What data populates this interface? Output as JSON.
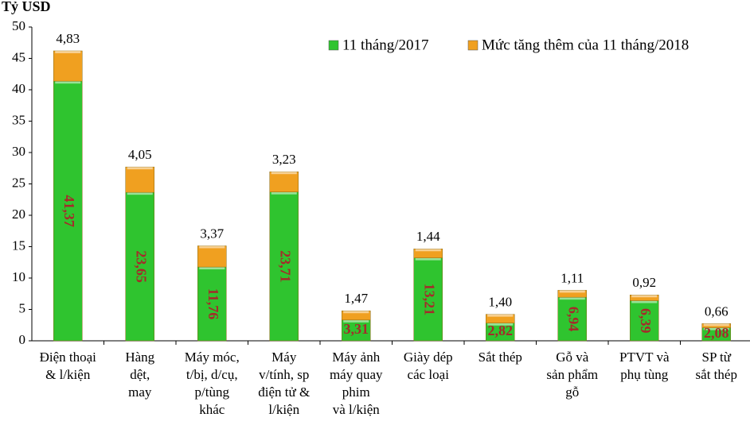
{
  "chart_data": {
    "type": "stacked_bar",
    "y_axis_label": "Tỷ USD",
    "categories": [
      [
        "Điện thoại",
        "& l/kiện"
      ],
      [
        "Hàng",
        "dệt,",
        "may"
      ],
      [
        "Máy móc,",
        "t/bị, d/cụ,",
        "p/tùng",
        "khác"
      ],
      [
        "Máy",
        "v/tính, sp",
        "điện tử &",
        "l/kiện"
      ],
      [
        "Máy ảnh",
        "máy quay",
        "phim",
        "và l/kiện"
      ],
      [
        "Giày dép",
        "các loại"
      ],
      [
        "Sắt thép"
      ],
      [
        "Gỗ và",
        "sản phẩm",
        "gỗ"
      ],
      [
        "PTVT và",
        "phụ tùng"
      ],
      [
        "SP từ",
        "sắt thép"
      ]
    ],
    "series": [
      {
        "name": "11 tháng/2017",
        "color": "#2fc42f",
        "values": [
          41.37,
          23.65,
          11.76,
          23.71,
          3.31,
          13.21,
          2.82,
          6.94,
          6.39,
          2.08
        ],
        "value_labels": [
          "41,37",
          "23,65",
          "11,76",
          "23,71",
          "3,31",
          "13,21",
          "2,82",
          "6,94",
          "6,39",
          "2,08"
        ]
      },
      {
        "name": "Mức tăng thêm của 11 tháng/2018",
        "color": "#f0a020",
        "values": [
          4.83,
          4.05,
          3.37,
          3.23,
          1.47,
          1.44,
          1.4,
          1.11,
          0.92,
          0.66
        ],
        "value_labels": [
          "4,83",
          "4,05",
          "3,37",
          "3,23",
          "1,47",
          "1,44",
          "1,40",
          "1,11",
          "0,92",
          "0,66"
        ]
      }
    ],
    "ylim": [
      0,
      50
    ],
    "yticks": [
      0,
      5,
      10,
      15,
      20,
      25,
      30,
      35,
      40,
      45,
      50
    ],
    "grid": false,
    "legend": "top-right"
  }
}
